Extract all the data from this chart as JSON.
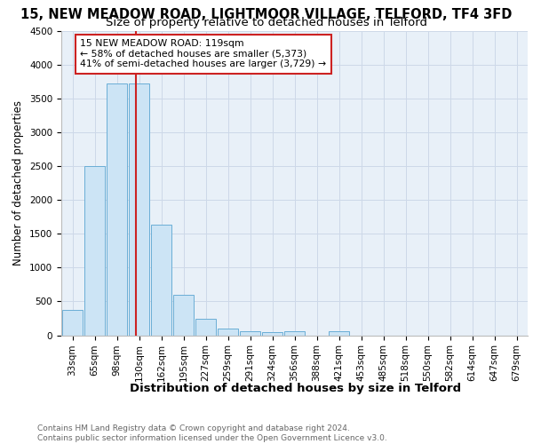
{
  "title1": "15, NEW MEADOW ROAD, LIGHTMOOR VILLAGE, TELFORD, TF4 3FD",
  "title2": "Size of property relative to detached houses in Telford",
  "xlabel": "Distribution of detached houses by size in Telford",
  "ylabel": "Number of detached properties",
  "categories": [
    "33sqm",
    "65sqm",
    "98sqm",
    "130sqm",
    "162sqm",
    "195sqm",
    "227sqm",
    "259sqm",
    "291sqm",
    "324sqm",
    "356sqm",
    "388sqm",
    "421sqm",
    "453sqm",
    "485sqm",
    "518sqm",
    "550sqm",
    "582sqm",
    "614sqm",
    "647sqm",
    "679sqm"
  ],
  "values": [
    370,
    2500,
    3730,
    3730,
    1640,
    600,
    240,
    100,
    60,
    50,
    60,
    0,
    60,
    0,
    0,
    0,
    0,
    0,
    0,
    0,
    0
  ],
  "bar_color": "#cce4f5",
  "bar_edge_color": "#6aaed6",
  "grid_color": "#cdd8e8",
  "background_color": "#e8f0f8",
  "vline_x": 2.85,
  "vline_color": "#cc2222",
  "annotation_text": "15 NEW MEADOW ROAD: 119sqm\n← 58% of detached houses are smaller (5,373)\n41% of semi-detached houses are larger (3,729) →",
  "annotation_box_color": "#cc2222",
  "ylim": [
    0,
    4500
  ],
  "yticks": [
    0,
    500,
    1000,
    1500,
    2000,
    2500,
    3000,
    3500,
    4000,
    4500
  ],
  "footer_text": "Contains HM Land Registry data © Crown copyright and database right 2024.\nContains public sector information licensed under the Open Government Licence v3.0.",
  "title1_fontsize": 10.5,
  "title2_fontsize": 9.5,
  "xlabel_fontsize": 9.5,
  "ylabel_fontsize": 8.5,
  "tick_fontsize": 7.5,
  "footer_fontsize": 6.5
}
